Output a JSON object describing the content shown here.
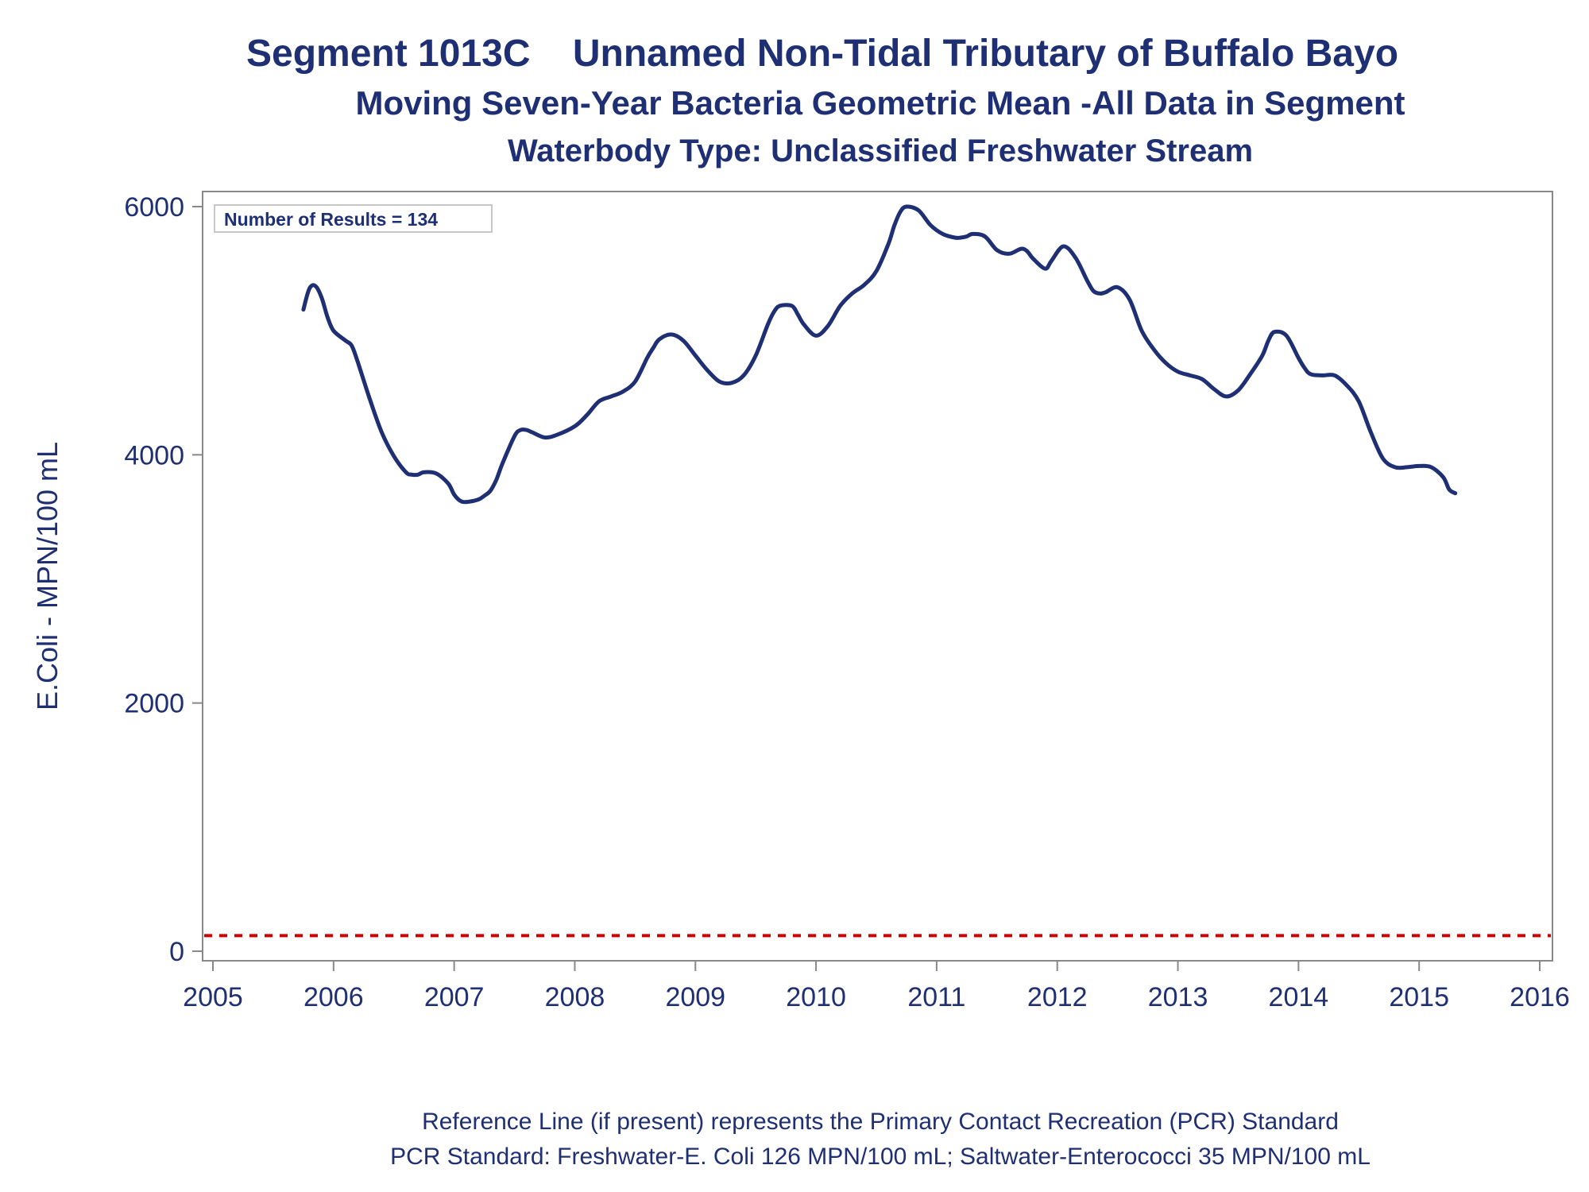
{
  "titles": {
    "line1": "Segment 1013C    Unnamed Non-Tidal Tributary of Buffalo Bayo",
    "line2": "Moving Seven-Year Bacteria Geometric Mean -All Data in Segment",
    "line3": "Waterbody Type: Unclassified Freshwater Stream"
  },
  "inset_label": "Number of Results = 134",
  "footnotes": {
    "line1": "Reference Line (if present) represents the Primary Contact Recreation (PCR) Standard",
    "line2": "PCR Standard: Freshwater-E. Coli 126 MPN/100 mL; Saltwater-Enterococci 35 MPN/100 mL"
  },
  "colors": {
    "series": "#1f2f73",
    "reference_line": "#cc0000",
    "text": "#1f2f73",
    "frame": "#888888"
  },
  "chart_data": {
    "type": "line",
    "title": "Segment 1013C    Unnamed Non-Tidal Tributary of Buffalo Bayo",
    "xlabel": "",
    "ylabel": "E.Coli - MPN/100 mL",
    "xlim": [
      2005,
      2016
    ],
    "ylim": [
      0,
      6000
    ],
    "x_ticks": [
      2005,
      2006,
      2007,
      2008,
      2009,
      2010,
      2011,
      2012,
      2013,
      2014,
      2015,
      2016
    ],
    "y_ticks": [
      0,
      2000,
      4000,
      6000
    ],
    "grid": false,
    "reference_line": {
      "y": 126,
      "style": "dashed"
    },
    "series": [
      {
        "x": [
          2005.75,
          2005.8,
          2005.85,
          2005.9,
          2005.95,
          2006.0,
          2006.1,
          2006.15,
          2006.2,
          2006.3,
          2006.4,
          2006.5,
          2006.6,
          2006.65,
          2006.7,
          2006.75,
          2006.85,
          2006.95,
          2007.0,
          2007.05,
          2007.1,
          2007.2,
          2007.25,
          2007.3,
          2007.35,
          2007.4,
          2007.5,
          2007.55,
          2007.6,
          2007.65,
          2007.75,
          2007.85,
          2008.0,
          2008.1,
          2008.2,
          2008.3,
          2008.4,
          2008.5,
          2008.6,
          2008.65,
          2008.7,
          2008.8,
          2008.9,
          2009.0,
          2009.1,
          2009.2,
          2009.3,
          2009.4,
          2009.5,
          2009.6,
          2009.65,
          2009.7,
          2009.8,
          2009.85,
          2009.9,
          2010.0,
          2010.1,
          2010.2,
          2010.3,
          2010.4,
          2010.5,
          2010.6,
          2010.65,
          2010.7,
          2010.75,
          2010.85,
          2010.95,
          2011.05,
          2011.15,
          2011.2,
          2011.25,
          2011.3,
          2011.4,
          2011.5,
          2011.6,
          2011.7,
          2011.75,
          2011.8,
          2011.9,
          2011.95,
          2012.05,
          2012.15,
          2012.25,
          2012.3,
          2012.35,
          2012.4,
          2012.5,
          2012.6,
          2012.7,
          2012.8,
          2012.9,
          2013.0,
          2013.1,
          2013.2,
          2013.3,
          2013.4,
          2013.5,
          2013.6,
          2013.7,
          2013.75,
          2013.8,
          2013.9,
          2014.0,
          2014.05,
          2014.1,
          2014.2,
          2014.3,
          2014.4,
          2014.5,
          2014.6,
          2014.7,
          2014.8,
          2014.9,
          2015.0,
          2015.1,
          2015.2,
          2015.25,
          2015.3
        ],
        "y": [
          5170,
          5340,
          5360,
          5270,
          5110,
          5000,
          4920,
          4880,
          4750,
          4450,
          4180,
          3990,
          3860,
          3840,
          3840,
          3860,
          3850,
          3770,
          3680,
          3630,
          3620,
          3640,
          3670,
          3710,
          3800,
          3930,
          4150,
          4200,
          4200,
          4180,
          4140,
          4160,
          4230,
          4320,
          4430,
          4470,
          4510,
          4590,
          4780,
          4860,
          4930,
          4970,
          4920,
          4800,
          4680,
          4590,
          4580,
          4640,
          4800,
          5050,
          5150,
          5200,
          5200,
          5130,
          5050,
          4960,
          5040,
          5200,
          5300,
          5370,
          5480,
          5700,
          5850,
          5960,
          6000,
          5970,
          5850,
          5780,
          5750,
          5750,
          5760,
          5780,
          5760,
          5650,
          5620,
          5660,
          5640,
          5580,
          5500,
          5560,
          5680,
          5590,
          5400,
          5320,
          5300,
          5310,
          5350,
          5250,
          5000,
          4850,
          4740,
          4670,
          4640,
          4610,
          4530,
          4470,
          4520,
          4650,
          4800,
          4920,
          4990,
          4960,
          4780,
          4700,
          4650,
          4640,
          4640,
          4560,
          4430,
          4180,
          3970,
          3900,
          3900,
          3910,
          3900,
          3820,
          3720,
          3690
        ]
      }
    ]
  }
}
